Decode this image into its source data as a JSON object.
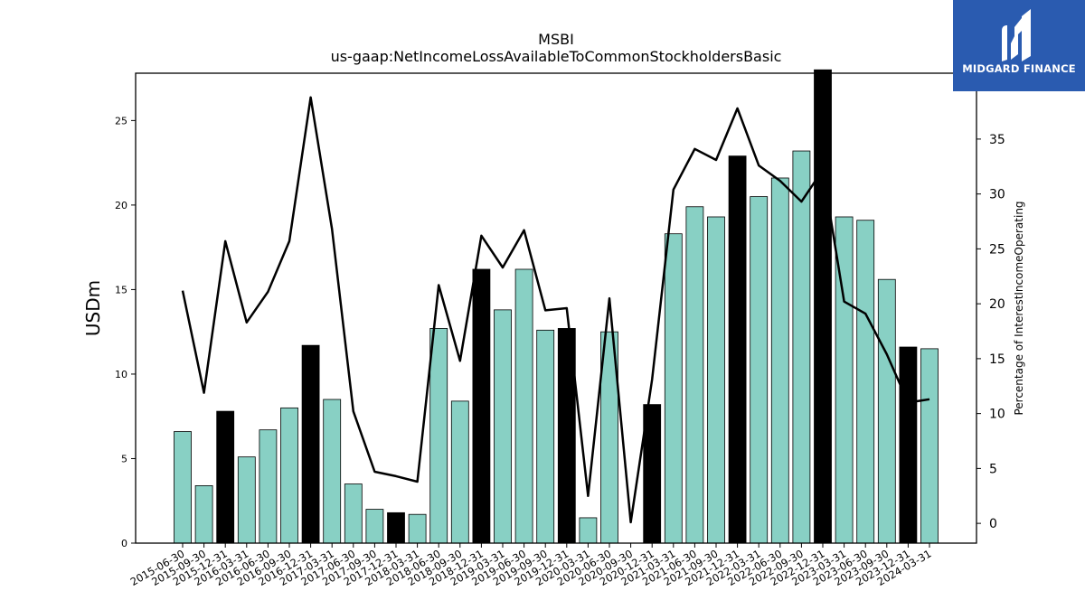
{
  "logo": {
    "text": "MIDGARD FINANCE"
  },
  "chart_data": {
    "type": "bar",
    "title": "MSBI",
    "subtitle": "us-gaap:NetIncomeLossAvailableToCommonStockholdersBasic",
    "ylabel": "USDm",
    "ylabel_right": "Percentage of InterestIncomeOperating",
    "ylim": [
      0,
      27.8
    ],
    "ylim_right": [
      -1.8,
      41.0
    ],
    "yticks": [
      0,
      5,
      10,
      15,
      20,
      25
    ],
    "yticks_right": [
      0,
      5,
      10,
      15,
      20,
      25,
      30,
      35
    ],
    "colors": {
      "bar": "#88d0c4",
      "bar_q4": "#000000",
      "line": "#000000"
    },
    "categories": [
      "2015-06-30",
      "2015-09-30",
      "2015-12-31",
      "2016-03-31",
      "2016-06-30",
      "2016-09-30",
      "2016-12-31",
      "2017-03-31",
      "2017-06-30",
      "2017-09-30",
      "2017-12-31",
      "2018-03-31",
      "2018-06-30",
      "2018-09-30",
      "2018-12-31",
      "2019-03-31",
      "2019-06-30",
      "2019-09-30",
      "2019-12-31",
      "2020-03-31",
      "2020-06-30",
      "2020-09-30",
      "2020-12-31",
      "2021-03-31",
      "2021-06-30",
      "2021-09-30",
      "2021-12-31",
      "2022-03-31",
      "2022-06-30",
      "2022-09-30",
      "2022-12-31",
      "2023-03-31",
      "2023-06-30",
      "2023-09-30",
      "2023-12-31",
      "2024-03-31"
    ],
    "series": [
      {
        "type": "bar",
        "axis": "left",
        "values": [
          6.6,
          3.4,
          7.8,
          5.1,
          6.7,
          8.0,
          11.7,
          8.5,
          3.5,
          2.0,
          1.8,
          1.7,
          12.7,
          8.4,
          16.2,
          13.8,
          16.2,
          12.6,
          12.7,
          1.5,
          12.5,
          0.0,
          8.2,
          18.3,
          19.9,
          19.3,
          22.9,
          20.5,
          21.6,
          23.2,
          28.0,
          19.3,
          19.1,
          15.6,
          11.6,
          11.5
        ]
      },
      {
        "type": "line",
        "axis": "right",
        "values": [
          21.2,
          11.9,
          25.7,
          18.3,
          21.1,
          25.7,
          38.8,
          26.8,
          10.2,
          4.7,
          4.3,
          3.8,
          21.7,
          14.8,
          26.2,
          23.3,
          26.7,
          19.4,
          19.6,
          2.5,
          20.5,
          0.1,
          13.1,
          30.4,
          34.1,
          33.1,
          37.8,
          32.6,
          31.2,
          29.3,
          32.2,
          20.2,
          19.1,
          15.4,
          11.0,
          11.3
        ]
      }
    ]
  }
}
